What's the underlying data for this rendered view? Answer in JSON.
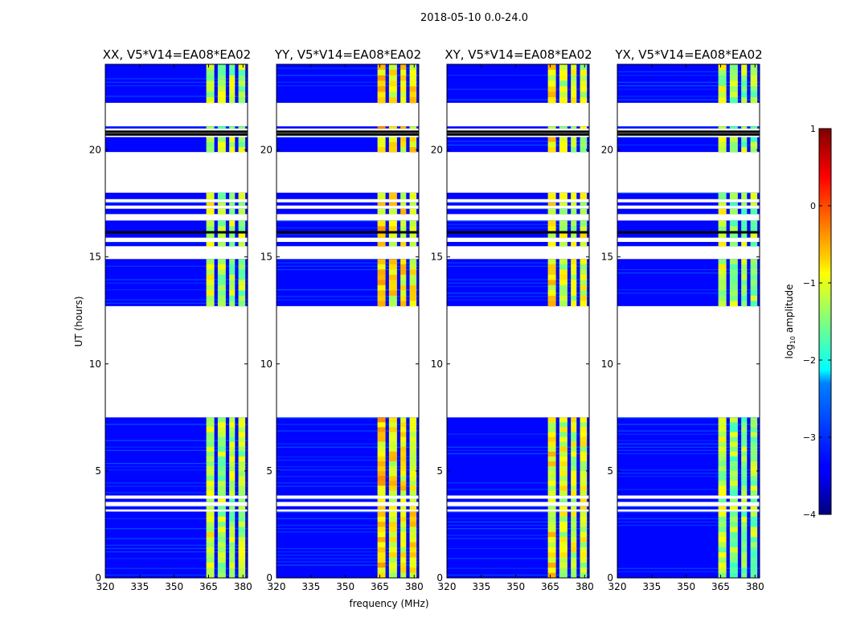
{
  "chart_data": {
    "type": "heatmap",
    "suptitle": "2018-05-10 0.0-24.0",
    "xlabel": "frequency (MHz)",
    "ylabel": "UT (hours)",
    "xlim": [
      320,
      382
    ],
    "ylim": [
      0,
      24
    ],
    "x_ticks": [
      320,
      335,
      350,
      365,
      380
    ],
    "y_ticks": [
      0,
      5,
      10,
      15,
      20
    ],
    "panels": [
      {
        "title": "XX, V5*V14=EA08*EA02"
      },
      {
        "title": "YY, V5*V14=EA08*EA02"
      },
      {
        "title": "XY, V5*V14=EA08*EA02"
      },
      {
        "title": "YX, V5*V14=EA08*EA02"
      }
    ],
    "colorbar": {
      "label": "log10 amplitude",
      "label_base": "log",
      "label_sub": "10",
      "label_rest": " amplitude",
      "range": [
        -4,
        1
      ],
      "ticks": [
        "1",
        "0",
        "−1",
        "−2",
        "−3",
        "−4"
      ],
      "colormap": "jet"
    },
    "data_segments_ut": [
      [
        0.0,
        3.1
      ],
      [
        3.2,
        3.35
      ],
      [
        3.55,
        3.7
      ],
      [
        3.85,
        7.5
      ],
      [
        12.7,
        14.9
      ],
      [
        15.5,
        15.7
      ],
      [
        15.9,
        16.7
      ],
      [
        17.0,
        17.25
      ],
      [
        17.4,
        17.55
      ],
      [
        17.7,
        18.0
      ],
      [
        19.9,
        20.6
      ],
      [
        21.0,
        21.1
      ],
      [
        22.2,
        24.0
      ]
    ],
    "black_lines_ut": [
      16.15,
      20.72,
      20.85
    ],
    "rfi_bands_mhz": [
      [
        364,
        367.5
      ],
      [
        369,
        372.5
      ],
      [
        374,
        376.5
      ],
      [
        378,
        381
      ]
    ],
    "rfi_level": {
      "XX": -1.3,
      "YY": -0.9,
      "XY": -1.1,
      "YX": -1.4
    }
  }
}
